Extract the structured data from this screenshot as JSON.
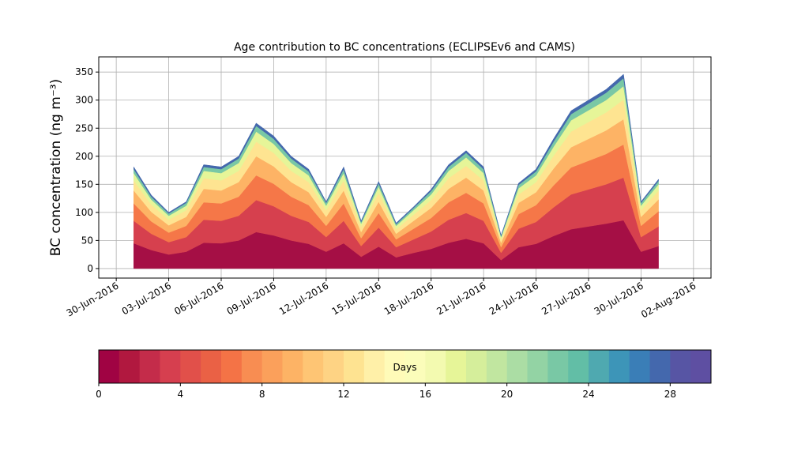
{
  "chart_data": {
    "type": "stacked_area",
    "title": "Age contribution to BC concentrations (ECLIPSEv6 and CAMS)",
    "y_label": "BC concentration (ng m⁻³)",
    "x": [
      "2016-07-01",
      "2016-07-02",
      "2016-07-03",
      "2016-07-04",
      "2016-07-05",
      "2016-07-06",
      "2016-07-07",
      "2016-07-08",
      "2016-07-09",
      "2016-07-10",
      "2016-07-11",
      "2016-07-12",
      "2016-07-13",
      "2016-07-14",
      "2016-07-15",
      "2016-07-16",
      "2016-07-17",
      "2016-07-18",
      "2016-07-19",
      "2016-07-20",
      "2016-07-21",
      "2016-07-22",
      "2016-07-23",
      "2016-07-24",
      "2016-07-25",
      "2016-07-26",
      "2016-07-27",
      "2016-07-28",
      "2016-07-29",
      "2016-07-30",
      "2016-07-31"
    ],
    "series": [
      {
        "color": "#a50f45",
        "values": [
          45,
          33,
          25,
          30,
          46,
          45,
          50,
          65,
          59,
          50,
          44,
          30,
          45,
          21,
          39,
          20,
          28,
          35,
          46,
          53,
          45,
          15,
          38,
          44,
          58,
          70,
          75,
          80,
          86,
          30,
          40
        ]
      },
      {
        "color": "#d6404e",
        "values": [
          40,
          29,
          22,
          26,
          41,
          40,
          44,
          57,
          52,
          44,
          39,
          26,
          40,
          19,
          34,
          18,
          24,
          31,
          41,
          46,
          40,
          13,
          33,
          39,
          51,
          62,
          66,
          70,
          76,
          26,
          35
        ]
      },
      {
        "color": "#f57748",
        "values": [
          31,
          22,
          17,
          20,
          31,
          31,
          34,
          44,
          40,
          34,
          30,
          20,
          31,
          14,
          26,
          14,
          19,
          24,
          31,
          36,
          31,
          10,
          26,
          30,
          39,
          48,
          51,
          54,
          59,
          20,
          27
        ]
      },
      {
        "color": "#fdb365",
        "values": [
          23,
          17,
          13,
          16,
          24,
          23,
          26,
          34,
          31,
          26,
          23,
          16,
          23,
          11,
          20,
          10,
          14,
          18,
          24,
          27,
          23,
          8,
          20,
          23,
          30,
          36,
          39,
          42,
          45,
          16,
          21
        ]
      },
      {
        "color": "#fee491",
        "values": [
          18,
          13,
          10,
          12,
          19,
          18,
          20,
          26,
          24,
          20,
          18,
          12,
          18,
          9,
          16,
          8,
          11,
          14,
          19,
          21,
          18,
          6,
          15,
          18,
          23,
          28,
          30,
          32,
          35,
          12,
          16
        ]
      },
      {
        "color": "#e6f598",
        "values": [
          13,
          9,
          7,
          8,
          13,
          13,
          14,
          18,
          16,
          14,
          12,
          8,
          13,
          6,
          11,
          6,
          8,
          10,
          13,
          15,
          13,
          4,
          11,
          12,
          16,
          20,
          21,
          22,
          24,
          8,
          11
        ]
      },
      {
        "color": "#79c8a5",
        "values": [
          7,
          5,
          4,
          5,
          7,
          7,
          8,
          10,
          9,
          8,
          7,
          5,
          7,
          3,
          6,
          3,
          4,
          6,
          7,
          8,
          7,
          2,
          6,
          7,
          9,
          11,
          12,
          13,
          14,
          5,
          6
        ]
      },
      {
        "color": "#4468ad",
        "values": [
          4,
          3,
          2,
          2,
          4,
          4,
          4,
          5,
          5,
          4,
          4,
          2,
          4,
          2,
          3,
          2,
          2,
          3,
          4,
          4,
          4,
          1,
          3,
          4,
          5,
          6,
          6,
          6,
          7,
          2,
          3
        ]
      }
    ],
    "xlim": [
      "2016-06-29",
      "2016-08-03"
    ],
    "xticks": [
      {
        "value": "2016-06-30",
        "label": "30-Jun-2016"
      },
      {
        "value": "2016-07-03",
        "label": "03-Jul-2016"
      },
      {
        "value": "2016-07-06",
        "label": "06-Jul-2016"
      },
      {
        "value": "2016-07-09",
        "label": "09-Jul-2016"
      },
      {
        "value": "2016-07-12",
        "label": "12-Jul-2016"
      },
      {
        "value": "2016-07-15",
        "label": "15-Jul-2016"
      },
      {
        "value": "2016-07-18",
        "label": "18-Jul-2016"
      },
      {
        "value": "2016-07-21",
        "label": "21-Jul-2016"
      },
      {
        "value": "2016-07-24",
        "label": "24-Jul-2016"
      },
      {
        "value": "2016-07-27",
        "label": "27-Jul-2016"
      },
      {
        "value": "2016-07-30",
        "label": "30-Jul-2016"
      },
      {
        "value": "2016-08-02",
        "label": "02-Aug-2016"
      }
    ],
    "ylim": [
      -17,
      377
    ],
    "yticks": [
      0,
      50,
      100,
      150,
      200,
      250,
      300,
      350
    ],
    "grid": true,
    "colorbar": {
      "label": "Days",
      "lim": [
        0,
        30
      ],
      "ticks": [
        0,
        4,
        8,
        12,
        16,
        20,
        24,
        28
      ],
      "colors": [
        "#a00343",
        "#b1183f",
        "#c42c4a",
        "#d63f4f",
        "#e1504a",
        "#ea6145",
        "#f47346",
        "#f88d52",
        "#fba05b",
        "#fdb365",
        "#fec574",
        "#fed384",
        "#fee391",
        "#fff0a8",
        "#fffbb8",
        "#fbfdba",
        "#f3fab0",
        "#e6f598",
        "#d5ee9b",
        "#c1e6a0",
        "#abdda4",
        "#93d3a4",
        "#79c8a5",
        "#62bea6",
        "#4fa9b0",
        "#3d95b8",
        "#3a7eb7",
        "#4468ad",
        "#5755a4",
        "#5e4fa2"
      ]
    }
  }
}
